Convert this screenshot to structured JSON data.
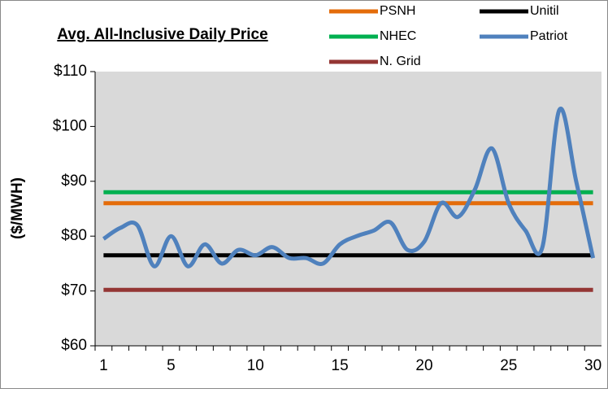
{
  "chart_data": {
    "type": "line",
    "title": "Avg. All-Inclusive Daily Price",
    "y_label": "($/MWH)",
    "x": [
      1,
      2,
      3,
      4,
      5,
      6,
      7,
      8,
      9,
      10,
      11,
      12,
      13,
      14,
      15,
      16,
      17,
      18,
      19,
      20,
      21,
      22,
      23,
      24,
      25,
      26,
      27,
      28,
      29,
      30
    ],
    "xlim": [
      0.5,
      30.5
    ],
    "xticks": [
      1,
      5,
      10,
      15,
      20,
      25,
      30
    ],
    "ylim": [
      60,
      110
    ],
    "yticks": [
      {
        "value": 60,
        "label": "$60"
      },
      {
        "value": 70,
        "label": "$70"
      },
      {
        "value": 80,
        "label": "$80"
      },
      {
        "value": 90,
        "label": "$90"
      },
      {
        "value": 100,
        "label": "$100"
      },
      {
        "value": 110,
        "label": "$110"
      }
    ],
    "series": [
      {
        "name": "PSNH",
        "color": "#e46c0a",
        "values": [
          86,
          86,
          86,
          86,
          86,
          86,
          86,
          86,
          86,
          86,
          86,
          86,
          86,
          86,
          86,
          86,
          86,
          86,
          86,
          86,
          86,
          86,
          86,
          86,
          86,
          86,
          86,
          86,
          86,
          86
        ]
      },
      {
        "name": "Unitil",
        "color": "#000000",
        "values": [
          76.5,
          76.5,
          76.5,
          76.5,
          76.5,
          76.5,
          76.5,
          76.5,
          76.5,
          76.5,
          76.5,
          76.5,
          76.5,
          76.5,
          76.5,
          76.5,
          76.5,
          76.5,
          76.5,
          76.5,
          76.5,
          76.5,
          76.5,
          76.5,
          76.5,
          76.5,
          76.5,
          76.5,
          76.5,
          76.5
        ]
      },
      {
        "name": "NHEC",
        "color": "#00b050",
        "values": [
          88,
          88,
          88,
          88,
          88,
          88,
          88,
          88,
          88,
          88,
          88,
          88,
          88,
          88,
          88,
          88,
          88,
          88,
          88,
          88,
          88,
          88,
          88,
          88,
          88,
          88,
          88,
          88,
          88,
          88
        ]
      },
      {
        "name": "Patriot",
        "color": "#4f81bd",
        "values": [
          79.5,
          81.5,
          82,
          74.5,
          80,
          74.5,
          78.5,
          75,
          77.5,
          76.5,
          78,
          76,
          76,
          75,
          78.5,
          80,
          81,
          82.5,
          77.5,
          79,
          86,
          83.5,
          88.5,
          96,
          86,
          81,
          78,
          103,
          90,
          76
        ]
      },
      {
        "name": "N. Grid",
        "color": "#943634",
        "values": [
          70.2,
          70.2,
          70.2,
          70.2,
          70.2,
          70.2,
          70.2,
          70.2,
          70.2,
          70.2,
          70.2,
          70.2,
          70.2,
          70.2,
          70.2,
          70.2,
          70.2,
          70.2,
          70.2,
          70.2,
          70.2,
          70.2,
          70.2,
          70.2,
          70.2,
          70.2,
          70.2,
          70.2,
          70.2,
          70.2
        ]
      }
    ]
  }
}
